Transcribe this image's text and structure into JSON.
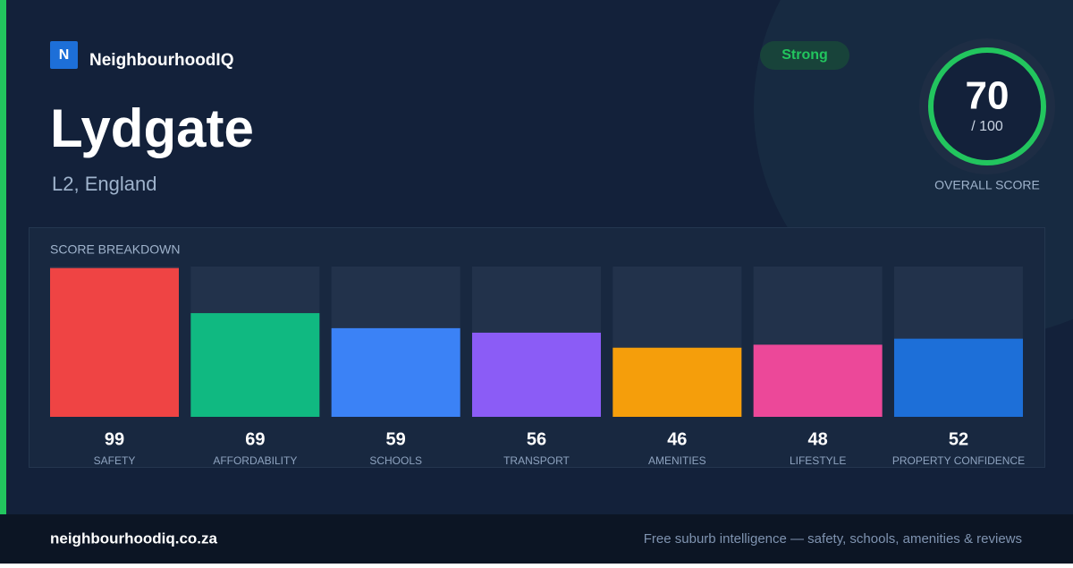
{
  "brand": "NeighbourhoodIQ",
  "logo_letter": "N",
  "title": "Lydgate",
  "subtitle": "L2, England",
  "badge": "Strong",
  "score": {
    "value": 70,
    "suffix": "/ 100",
    "label": "OVERALL SCORE"
  },
  "chart_data": {
    "type": "bar",
    "title": "SCORE BREAKDOWN",
    "categories": [
      "SAFETY",
      "AFFORDABILITY",
      "SCHOOLS",
      "TRANSPORT",
      "AMENITIES",
      "LIFESTYLE",
      "PROPERTY CONFIDENCE"
    ],
    "values": [
      99,
      69,
      59,
      56,
      46,
      48,
      52
    ],
    "colors": [
      "#ef4444",
      "#10b981",
      "#3b82f6",
      "#8b5cf6",
      "#f59e0b",
      "#ec4899",
      "#1d6fd8"
    ],
    "ylim": [
      0,
      100
    ]
  },
  "footer": {
    "site": "neighbourhoodiq.co.za",
    "tagline": "Free suburb intelligence — safety, schools, amenities & reviews"
  }
}
